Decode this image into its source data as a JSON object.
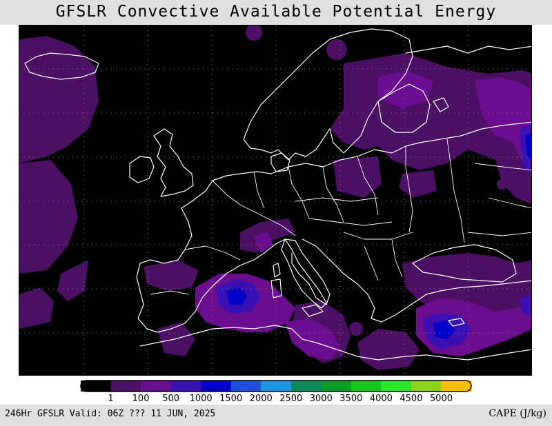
{
  "title": "GFSLR Convective Available Potential Energy",
  "footer": {
    "left": "246Hr GFSLR Valid: 06Z ??? 11 JUN, 2025",
    "right": "CAPE (J/kg)"
  },
  "legend": {
    "colors": [
      "#000000",
      "#4b0f63",
      "#6a0d8e",
      "#3a10b4",
      "#0000c8",
      "#1e50dc",
      "#1e96e6",
      "#0c8c5a",
      "#0a9e26",
      "#18c818",
      "#28e628",
      "#8cd21e",
      "#ffbe00"
    ],
    "labels": [
      "1",
      "100",
      "500",
      "1000",
      "1500",
      "2000",
      "2500",
      "3000",
      "3500",
      "4000",
      "4500",
      "5000"
    ]
  },
  "map": {
    "palette": {
      "background": "#000000",
      "cape_100": "#4b0f63",
      "cape_500": "#6a0d8e",
      "cape_1000": "#3a10b4",
      "cape_1500": "#0000c8",
      "coastline": "#ffffff",
      "grid": "#8a8a8a"
    }
  }
}
